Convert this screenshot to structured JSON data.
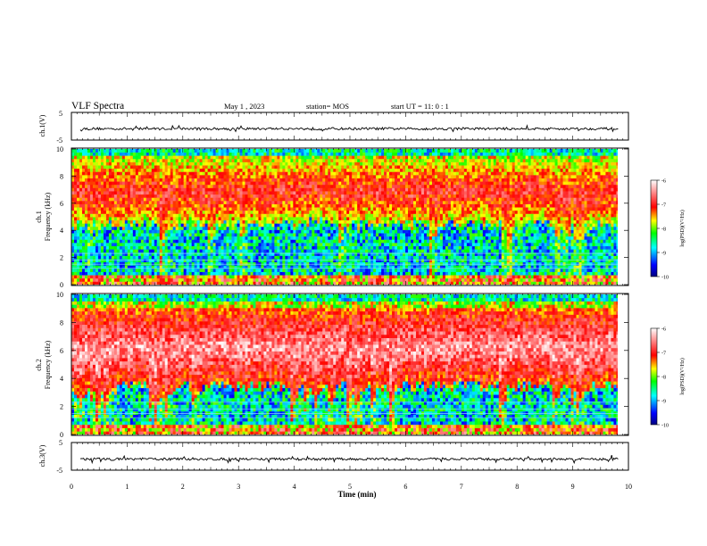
{
  "chart_data": {
    "type": "heatmap",
    "title": "VLF Spectra",
    "date": "May 1 , 2023",
    "station": "station= MOS",
    "start": "start UT = 11: 0 : 1",
    "xlabel": "Time (min)",
    "x_ticks": [
      "0",
      "1",
      "2",
      "3",
      "4",
      "5",
      "6",
      "7",
      "8",
      "9",
      "10"
    ],
    "xlim": [
      0,
      10
    ],
    "data_end_min": 9.83,
    "panels": [
      {
        "id": "ch1-waveform",
        "type": "line",
        "ylabel": "ch.1(V)",
        "ylim": [
          -5,
          5
        ],
        "y_ticks": [
          "5",
          "-5"
        ],
        "baseline": -0.9
      },
      {
        "id": "ch1-spectrogram",
        "type": "heatmap",
        "ylabel_top": "ch.1",
        "ylabel": "Frequency (kHz)",
        "ylim": [
          0,
          10
        ],
        "y_ticks": [
          "0",
          "2",
          "4",
          "6",
          "8",
          "10"
        ],
        "dominant_band_khz": [
          4.5,
          9.3
        ],
        "hiss_level_log": -7
      },
      {
        "id": "ch2-spectrogram",
        "type": "heatmap",
        "ylabel_top": "ch.2",
        "ylabel": "Frequency (kHz)",
        "ylim": [
          0,
          10
        ],
        "y_ticks": [
          "0",
          "2",
          "4",
          "6",
          "8",
          "10"
        ],
        "dominant_band_khz": [
          3.5,
          9.0
        ],
        "hiss_level_log": -6.5
      },
      {
        "id": "ch3-waveform",
        "type": "line",
        "ylabel": "ch.3(V)",
        "ylim": [
          -5,
          5
        ],
        "y_ticks": [
          "5",
          "-5"
        ],
        "baseline": -1.0
      }
    ],
    "colorbar": {
      "label": "log(PSD)(V²/Hz)",
      "range": [
        -10,
        -6
      ],
      "ticks": [
        "-6",
        "-7",
        "-8",
        "-9",
        "-10"
      ],
      "colors": [
        "#000080",
        "#0000ff",
        "#00ffff",
        "#00ff00",
        "#ffff00",
        "#ff0000",
        "#ffffff"
      ]
    }
  }
}
